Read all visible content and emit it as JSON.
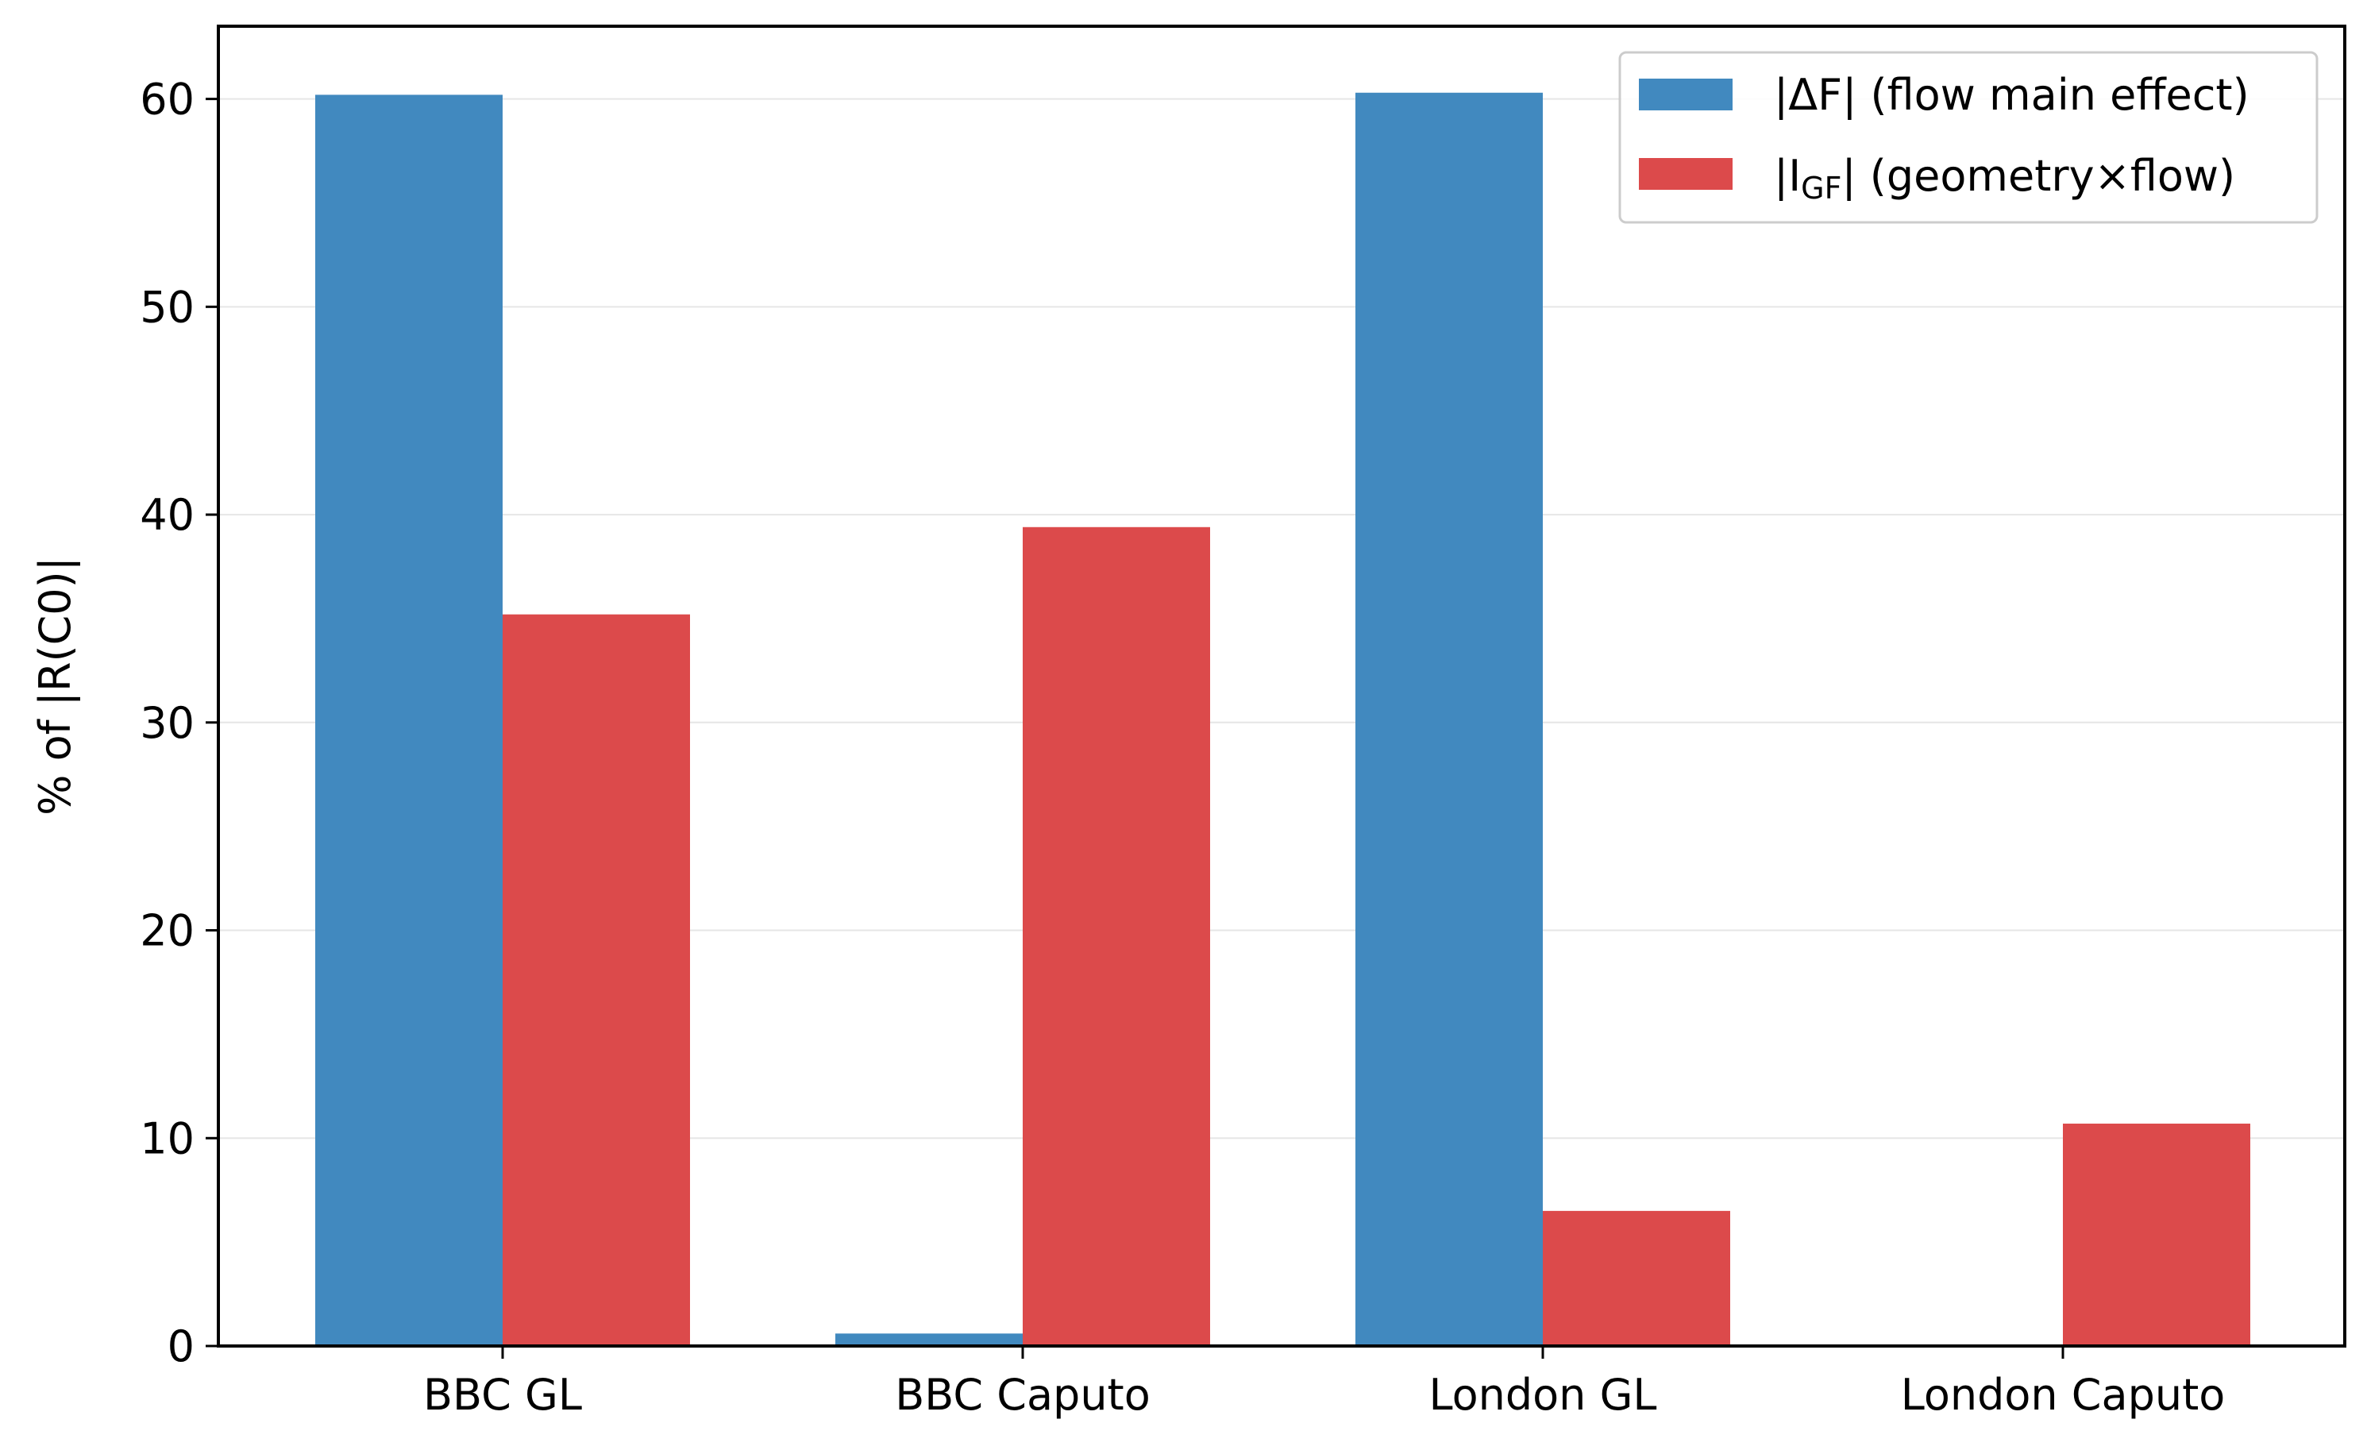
{
  "chart_data": {
    "type": "bar",
    "title": "",
    "xlabel": "",
    "ylabel": "% of |R(C0)|",
    "ylim": [
      0,
      63.5
    ],
    "yticks": [
      0,
      10,
      20,
      30,
      40,
      50,
      60
    ],
    "grid": "y",
    "legend_position": "top-right",
    "categories": [
      "BBC GL",
      "BBC Caputo",
      "London GL",
      "London Caputo"
    ],
    "series": [
      {
        "name": "|ΔF| (flow main effect)",
        "legend_main": "|ΔF|",
        "legend_desc": " (flow main effect)",
        "color": "#4189bf",
        "values": [
          60.2,
          0.6,
          60.3,
          0.0
        ]
      },
      {
        "name": "|I_GF| (geometry×flow)",
        "legend_main": "|I",
        "legend_sub": "GF",
        "legend_close": "|",
        "legend_desc": " (geometry×flow)",
        "color": "#dc4a4b",
        "values": [
          35.2,
          39.4,
          6.5,
          10.7
        ]
      }
    ]
  }
}
